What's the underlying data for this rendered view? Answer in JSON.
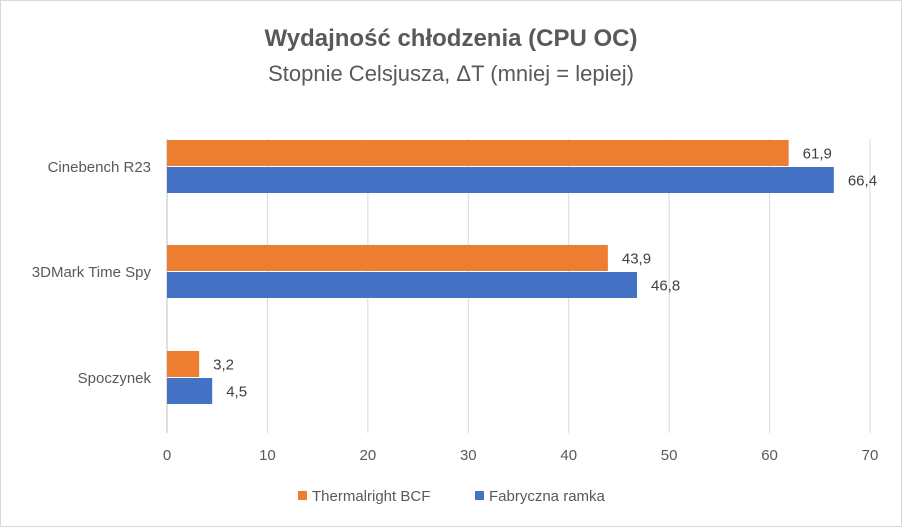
{
  "chart_data": {
    "type": "bar",
    "orientation": "horizontal",
    "title": "Wydajność chłodzenia (CPU OC)",
    "subtitle": "Stopnie Celsjusza, ΔT (mniej = lepiej)",
    "categories": [
      "Cinebench R23",
      "3DMark Time Spy",
      "Spoczynek"
    ],
    "series": [
      {
        "name": "Thermalright BCF",
        "color": "#ED7D31",
        "values": [
          61.9,
          43.9,
          3.2
        ],
        "labels": [
          "61,9",
          "43,9",
          "3,2"
        ]
      },
      {
        "name": "Fabryczna ramka",
        "color": "#4472C4",
        "values": [
          66.4,
          46.8,
          4.5
        ],
        "labels": [
          "66,4",
          "46,8",
          "4,5"
        ]
      }
    ],
    "xlim": [
      0,
      70
    ],
    "xticks": [
      "0",
      "10",
      "20",
      "30",
      "40",
      "50",
      "60",
      "70"
    ],
    "grid": true,
    "legend": "bottom"
  }
}
